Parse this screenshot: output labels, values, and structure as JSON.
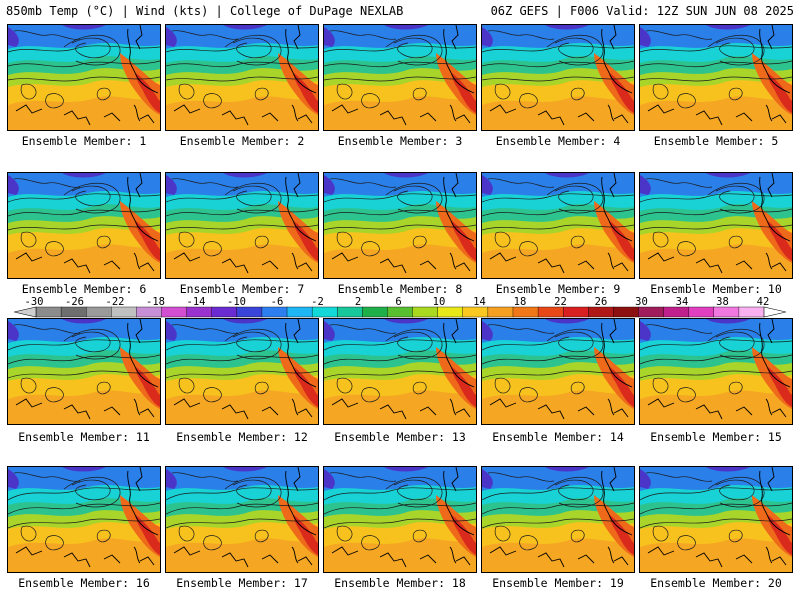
{
  "header": {
    "left": "850mb Temp (°C) | Wind (kts) | College of DuPage NEXLAB",
    "right": "06Z GEFS | F006 Valid: 12Z SUN JUN 08 2025"
  },
  "member_prefix": "Ensemble Member: ",
  "members": [
    {
      "label": "Ensemble Member: 1"
    },
    {
      "label": "Ensemble Member: 2"
    },
    {
      "label": "Ensemble Member: 3"
    },
    {
      "label": "Ensemble Member: 4"
    },
    {
      "label": "Ensemble Member: 5"
    },
    {
      "label": "Ensemble Member: 6"
    },
    {
      "label": "Ensemble Member: 7"
    },
    {
      "label": "Ensemble Member: 8"
    },
    {
      "label": "Ensemble Member: 9"
    },
    {
      "label": "Ensemble Member: 10"
    },
    {
      "label": "Ensemble Member: 11"
    },
    {
      "label": "Ensemble Member: 12"
    },
    {
      "label": "Ensemble Member: 13"
    },
    {
      "label": "Ensemble Member: 14"
    },
    {
      "label": "Ensemble Member: 15"
    },
    {
      "label": "Ensemble Member: 16"
    },
    {
      "label": "Ensemble Member: 17"
    },
    {
      "label": "Ensemble Member: 18"
    },
    {
      "label": "Ensemble Member: 19"
    },
    {
      "label": "Ensemble Member: 20"
    }
  ],
  "colorbar": {
    "tick_labels": [
      "-30",
      "-26",
      "-22",
      "-18",
      "-14",
      "-10",
      "-6",
      "-2",
      "2",
      "6",
      "10",
      "14",
      "18",
      "22",
      "26",
      "30",
      "34",
      "38",
      "42"
    ],
    "colors": [
      "#8c8c8c",
      "#6e6e6e",
      "#9a9a9a",
      "#c0c0c0",
      "#c78fd6",
      "#d24fd2",
      "#9a32cd",
      "#6a2bd0",
      "#3a44d8",
      "#2d7ff0",
      "#1fb6f5",
      "#12d8d8",
      "#18c79a",
      "#20b04a",
      "#58c030",
      "#a8d820",
      "#e8e818",
      "#fac820",
      "#f5a020",
      "#f07818",
      "#e84818",
      "#d82020",
      "#b01818",
      "#8c1010",
      "#a01c5a",
      "#c0208c",
      "#e040c0",
      "#f078e0",
      "#f8b0f0"
    ]
  }
}
